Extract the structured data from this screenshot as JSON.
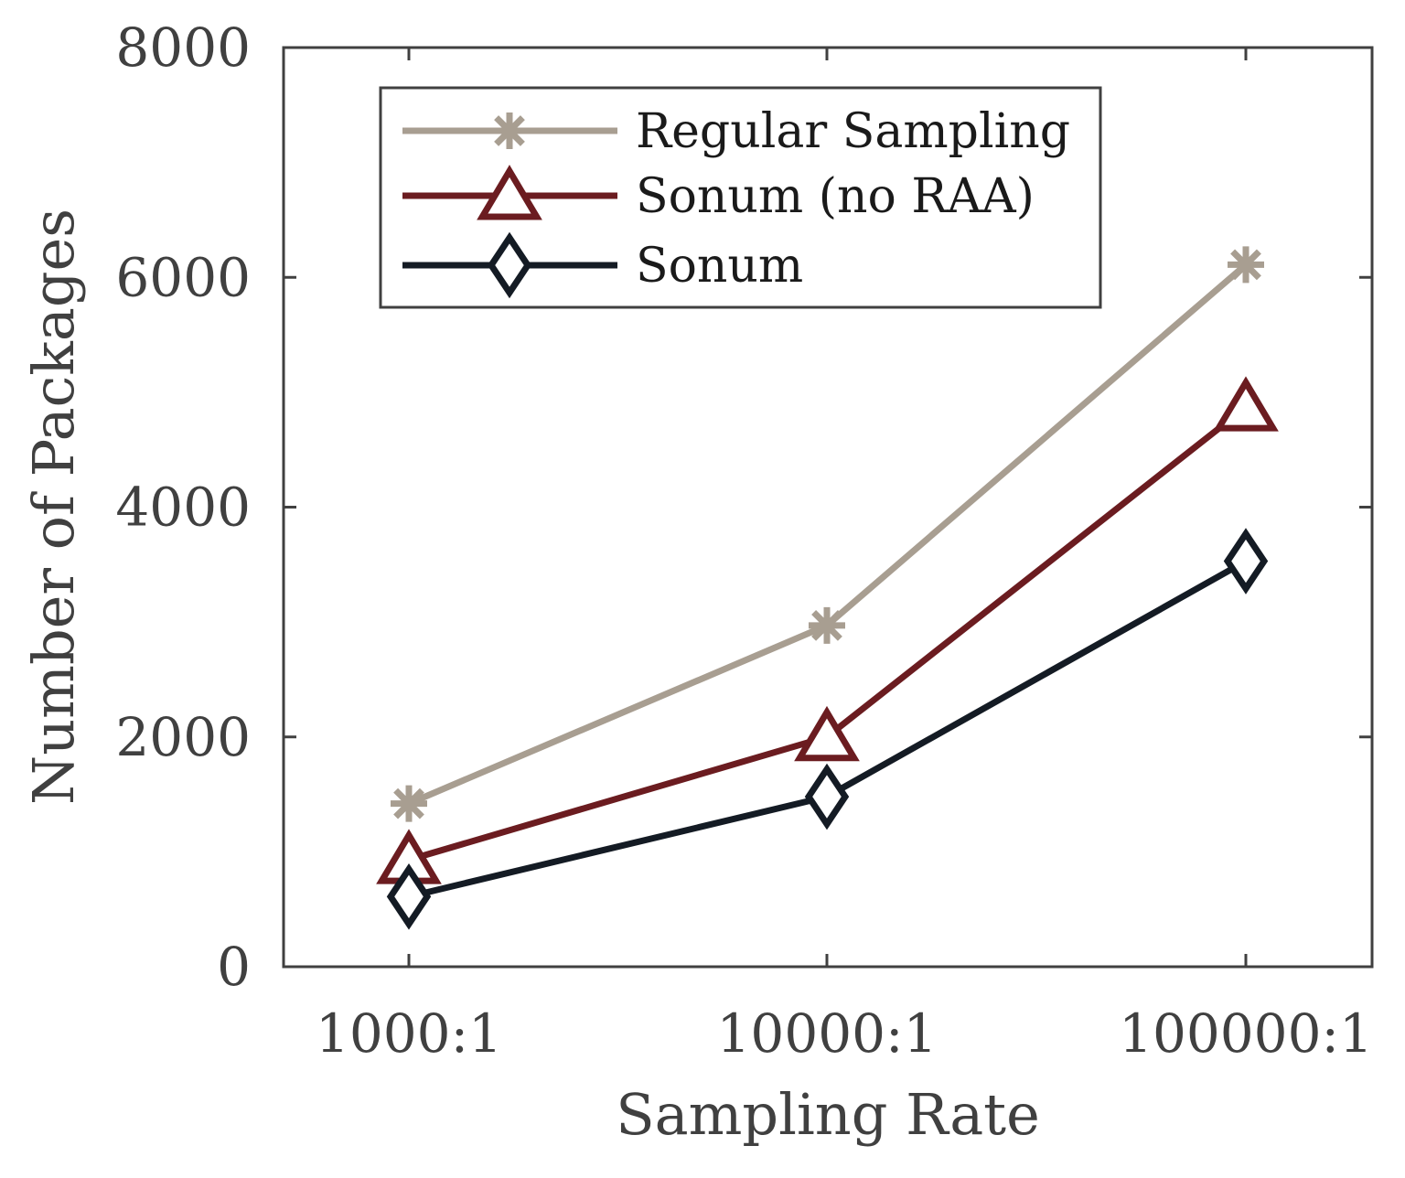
{
  "chart_data": {
    "type": "line",
    "categories": [
      "1000:1",
      "10000:1",
      "100000:1"
    ],
    "series": [
      {
        "name": "Regular Sampling",
        "values": [
          1420,
          2970,
          6110
        ],
        "color": "#a89e91",
        "marker": "asterisk"
      },
      {
        "name": "Sonum (no RAA)",
        "values": [
          930,
          2000,
          4870
        ],
        "color": "#6b1c20",
        "marker": "triangle"
      },
      {
        "name": "Sonum",
        "values": [
          610,
          1480,
          3530
        ],
        "color": "#141b24",
        "marker": "diamond"
      }
    ],
    "title": "",
    "xlabel": "Sampling Rate",
    "ylabel": "Number of Packages",
    "ylim": [
      0,
      8000
    ],
    "yticks": [
      "0",
      "2000",
      "4000",
      "6000",
      "8000"
    ],
    "grid": false,
    "legend_position": "top-left"
  }
}
